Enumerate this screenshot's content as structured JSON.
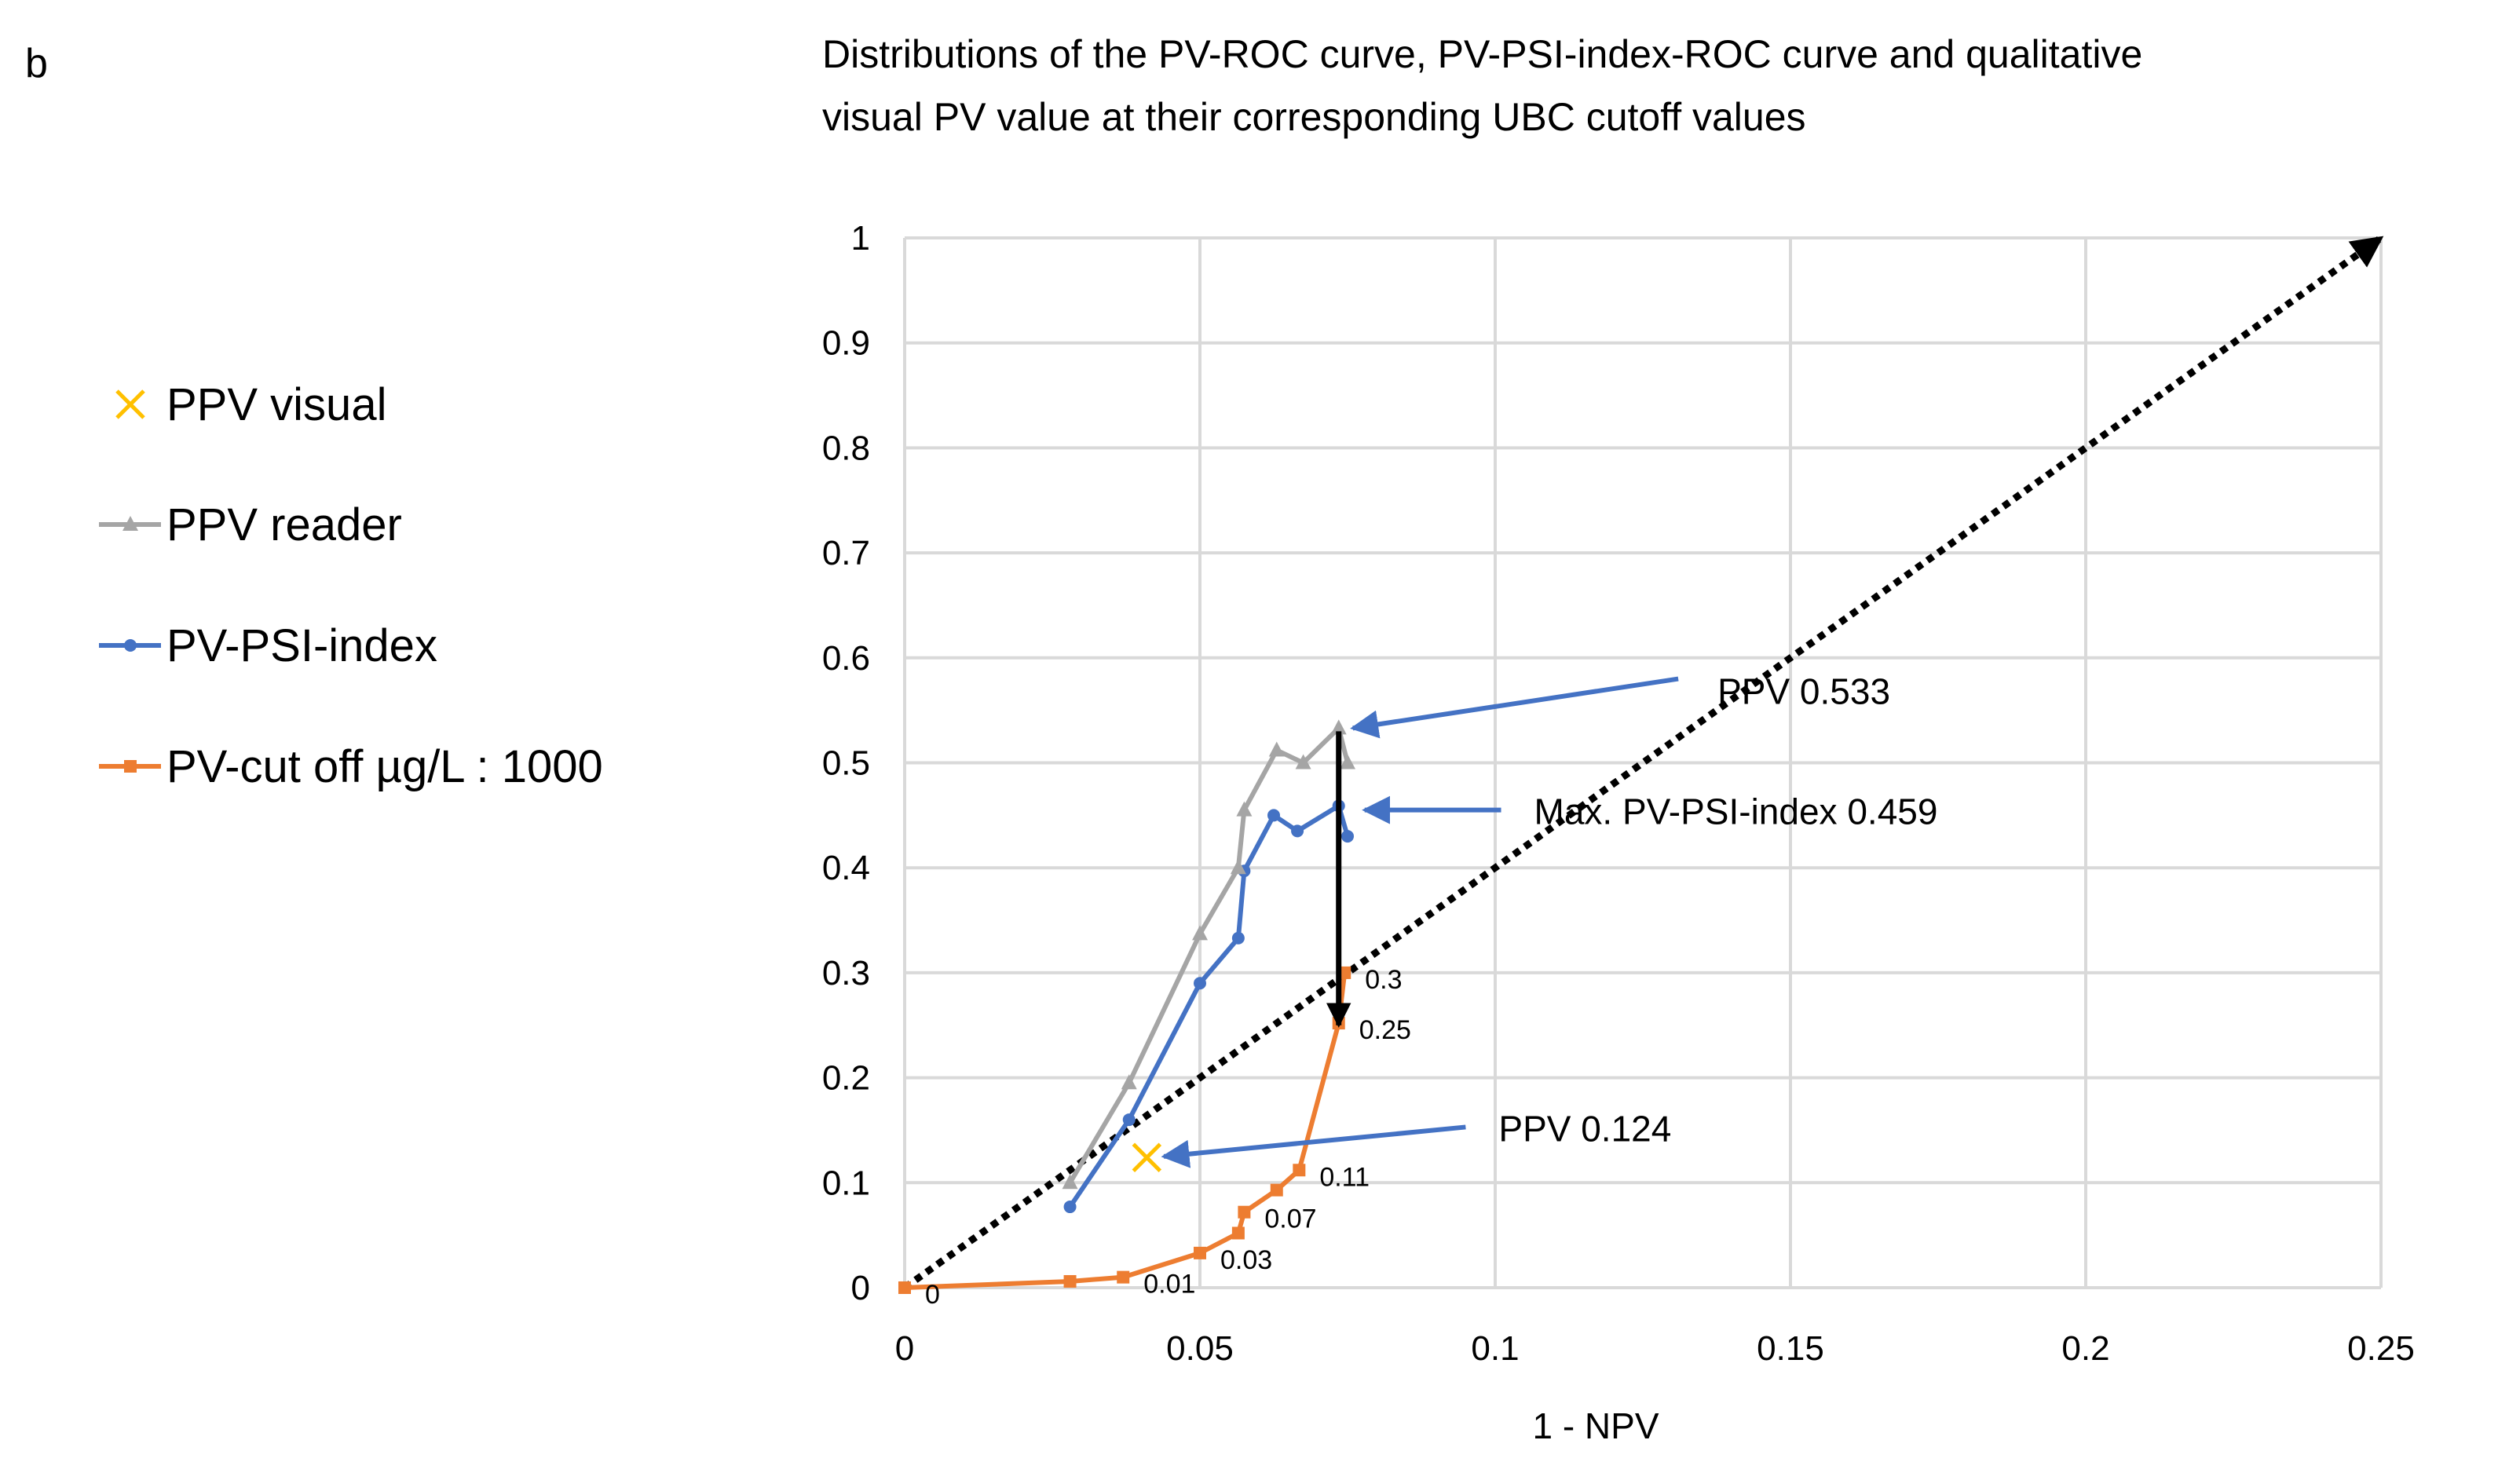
{
  "panel_label": "b",
  "chart_data": {
    "type": "line",
    "title_lines": [
      "Distributions of the PV-ROC curve, PV-PSI-index-ROC curve and qualitative",
      "visual  PV value  at their corresponding UBC cutoff values"
    ],
    "xlabel": "1 - NPV",
    "ylabel": "",
    "xlim": [
      0,
      0.25
    ],
    "ylim": [
      0,
      1
    ],
    "x_ticks": [
      "0",
      "0.05",
      "0.1",
      "0.15",
      "0.2",
      "0.25"
    ],
    "y_ticks": [
      "0",
      "0.1",
      "0.2",
      "0.3",
      "0.4",
      "0.5",
      "0.6",
      "0.7",
      "0.8",
      "0.9",
      "1"
    ],
    "grid": true,
    "legend_position": "left",
    "series": [
      {
        "name": "PPV visual",
        "color": "#ffc000",
        "marker": "x",
        "points": [
          [
            0.041,
            0.124
          ]
        ]
      },
      {
        "name": "PPV reader",
        "color": "#a5a5a5",
        "marker": "triangle",
        "points": [
          [
            0.028,
            0.1
          ],
          [
            0.038,
            0.195
          ],
          [
            0.05,
            0.337
          ],
          [
            0.0565,
            0.4
          ],
          [
            0.0575,
            0.455
          ],
          [
            0.063,
            0.512
          ],
          [
            0.0675,
            0.5
          ],
          [
            0.0735,
            0.533
          ],
          [
            0.075,
            0.5
          ]
        ]
      },
      {
        "name": "PV-PSI-index",
        "color": "#4472c4",
        "marker": "circle",
        "points": [
          [
            0.028,
            0.077
          ],
          [
            0.038,
            0.16
          ],
          [
            0.05,
            0.29
          ],
          [
            0.0565,
            0.333
          ],
          [
            0.0575,
            0.397
          ],
          [
            0.0625,
            0.45
          ],
          [
            0.0665,
            0.435
          ],
          [
            0.0735,
            0.459
          ],
          [
            0.075,
            0.43
          ]
        ]
      },
      {
        "name": "PV-cut off µg/L : 1000",
        "color": "#ed7d31",
        "marker": "square",
        "points": [
          [
            0,
            0
          ],
          [
            0.028,
            0.006
          ],
          [
            0.037,
            0.01
          ],
          [
            0.05,
            0.033
          ],
          [
            0.0565,
            0.052
          ],
          [
            0.0575,
            0.072
          ],
          [
            0.063,
            0.093
          ],
          [
            0.0668,
            0.112
          ],
          [
            0.0735,
            0.252
          ],
          [
            0.0745,
            0.3
          ]
        ]
      }
    ],
    "point_labels": [
      {
        "text": "0",
        "x": 0,
        "y": 0
      },
      {
        "text": "0.01",
        "x": 0.037,
        "y": 0.01
      },
      {
        "text": "0.03",
        "x": 0.05,
        "y": 0.033
      },
      {
        "text": "0.07",
        "x": 0.0575,
        "y": 0.072
      },
      {
        "text": "0.11",
        "x": 0.0668,
        "y": 0.112
      },
      {
        "text": "0.25",
        "x": 0.0735,
        "y": 0.252
      },
      {
        "text": "0.3",
        "x": 0.0745,
        "y": 0.3
      }
    ],
    "diagonal": {
      "from": [
        0,
        0
      ],
      "to": [
        0.25,
        1
      ],
      "style": "dotted-arrow",
      "color": "#000000"
    },
    "drop_arrow": {
      "from": [
        0.0735,
        0.53
      ],
      "to": [
        0.0735,
        0.25
      ],
      "color": "#000000"
    },
    "annotations": [
      {
        "text": "PPV 0.533",
        "anchor": [
          0.131,
          0.58
        ],
        "target": [
          0.0735,
          0.533
        ],
        "color": "#4472c4"
      },
      {
        "text": "Max. PV-PSI-index 0.459",
        "anchor": [
          0.101,
          0.455
        ],
        "target": [
          0.0755,
          0.455
        ],
        "color": "#4472c4"
      },
      {
        "text": "PPV 0.124",
        "anchor": [
          0.095,
          0.153
        ],
        "target": [
          0.0415,
          0.125
        ],
        "color": "#4472c4"
      }
    ]
  }
}
